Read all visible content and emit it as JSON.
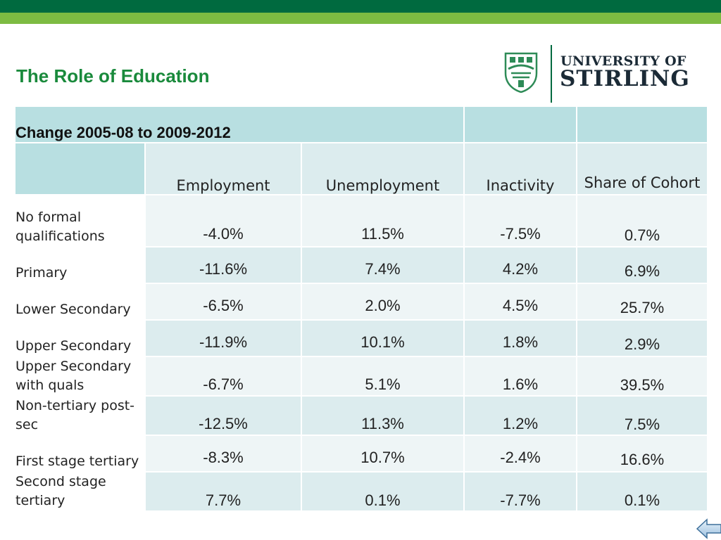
{
  "header": {
    "title": "The Role of Education"
  },
  "logo": {
    "line1": "UNIVERSITY OF",
    "line2": "STIRLING"
  },
  "table": {
    "caption": "Change 2005-08 to 2009-2012",
    "columns": [
      "Employment",
      "Unemployment",
      "Inactivity",
      "Share of Cohort"
    ],
    "rows": [
      {
        "label": "No formal qualifications",
        "values": [
          "-4.0%",
          "11.5%",
          "-7.5%",
          "0.7%"
        ]
      },
      {
        "label": "Primary",
        "values": [
          "-11.6%",
          "7.4%",
          "4.2%",
          "6.9%"
        ]
      },
      {
        "label": "Lower Secondary",
        "values": [
          "-6.5%",
          "2.0%",
          "4.5%",
          "25.7%"
        ]
      },
      {
        "label": "Upper Secondary",
        "values": [
          "-11.9%",
          "10.1%",
          "1.8%",
          "2.9%"
        ]
      },
      {
        "label": "Upper Secondary with quals",
        "values": [
          "-6.7%",
          "5.1%",
          "1.6%",
          "39.5%"
        ]
      },
      {
        "label": "Non-tertiary post-sec",
        "values": [
          "-12.5%",
          "11.3%",
          "1.2%",
          "7.5%"
        ]
      },
      {
        "label": "First stage tertiary",
        "values": [
          "-8.3%",
          "10.7%",
          "-2.4%",
          "16.6%"
        ]
      },
      {
        "label": "Second stage tertiary",
        "values": [
          "7.7%",
          "0.1%",
          "-7.7%",
          "0.1%"
        ]
      }
    ]
  },
  "colors": {
    "dark_band": "#006a3f",
    "light_band": "#7dbb42",
    "title": "#1a8a3c",
    "table_header": "#b8dfe1"
  },
  "icons": {
    "crest": "university-crest-icon",
    "nav": "back-arrow-icon"
  }
}
